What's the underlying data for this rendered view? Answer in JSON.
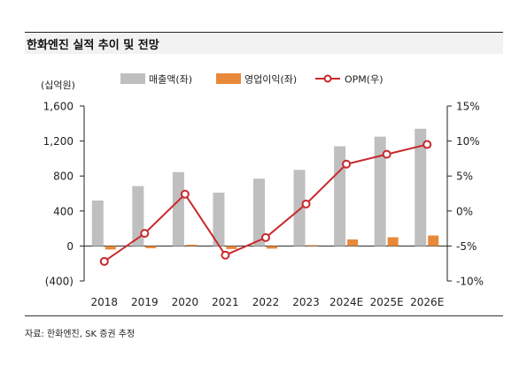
{
  "title": "한화엔진 실적 추이 및 전망",
  "source": "자료: 한화엔진, SK 증권 추정",
  "colors": {
    "revenue": "#bfbfbf",
    "op_profit": "#e8893a",
    "opm": "#c9282d",
    "axis": "#222222"
  },
  "chart_data": {
    "type": "bar",
    "title": "한화엔진 실적 추이 및 전망",
    "unit_label": "(십억원)",
    "categories": [
      "2018",
      "2019",
      "2020",
      "2021",
      "2022",
      "2023",
      "2024E",
      "2025E",
      "2026E"
    ],
    "series": [
      {
        "name": "매출액(좌)",
        "type": "bar",
        "axis": "left",
        "values": [
          520,
          685,
          845,
          610,
          770,
          870,
          1140,
          1250,
          1340
        ]
      },
      {
        "name": "영업이익(좌)",
        "type": "bar",
        "axis": "left",
        "values": [
          -40,
          -25,
          15,
          -35,
          -30,
          10,
          75,
          100,
          120
        ]
      },
      {
        "name": "OPM(우)",
        "type": "line",
        "axis": "right",
        "values": [
          -7.2,
          -3.2,
          2.4,
          -6.3,
          -3.8,
          1.0,
          6.7,
          8.1,
          9.5
        ]
      }
    ],
    "y_left": {
      "min": -400,
      "max": 1600,
      "ticks": [
        -400,
        0,
        400,
        800,
        1200,
        1600
      ],
      "tick_labels": [
        "(400)",
        "0",
        "400",
        "800",
        "1,200",
        "1,600"
      ]
    },
    "y_right": {
      "min": -10,
      "max": 15,
      "ticks": [
        -10,
        -5,
        0,
        5,
        10,
        15
      ],
      "tick_labels": [
        "-10%",
        "-5%",
        "0%",
        "5%",
        "10%",
        "15%"
      ]
    },
    "legend_position": "top",
    "grid": false
  }
}
